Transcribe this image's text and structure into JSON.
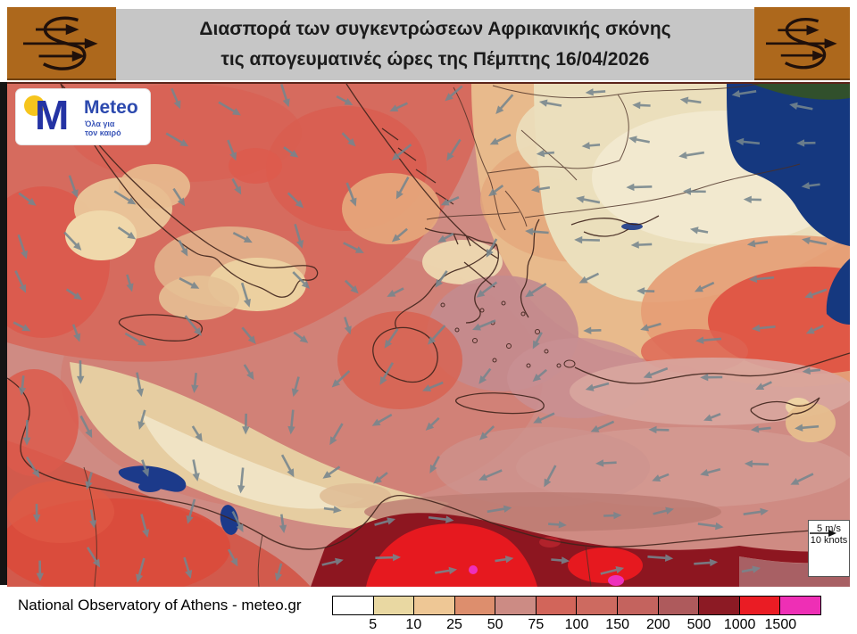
{
  "header": {
    "title_line1": "Διασπορά των συγκεντρώσεων Αφρικανικής σκόνης",
    "title_line2": "τις απογευματινές ώρες της Πέμπτης 16/04/2026"
  },
  "brand": {
    "monogram": "M",
    "name": "Meteo",
    "tagline_line1": "Όλα για",
    "tagline_line2": "τον καιρό"
  },
  "wind_scale": {
    "ms": "5 m/s",
    "knots": "10 knots"
  },
  "footer": {
    "credit": "National Observatory of Athens - meteo.gr"
  },
  "legend": {
    "values": [
      "5",
      "10",
      "25",
      "50",
      "75",
      "100",
      "150",
      "200",
      "500",
      "1000",
      "1500"
    ],
    "colors": [
      "#ffffff",
      "#e9d8a2",
      "#eec795",
      "#dd8e6d",
      "#cc8b84",
      "#d2655a",
      "#cd6a60",
      "#c4635e",
      "#ae5a5c",
      "#8c1a24",
      "#ea1c24",
      "#ee2fb5"
    ]
  },
  "colors": {
    "header_bg": "#c6c6c6",
    "logo_box_bg": "#ad681c",
    "sea_base": "#cf8b83",
    "black_sea": "#15387f",
    "wind_arrow": "#76868e",
    "high_dust": "#8d1620",
    "extreme_dust": "#e6191f",
    "peak_dust": "#ee2fbb"
  }
}
